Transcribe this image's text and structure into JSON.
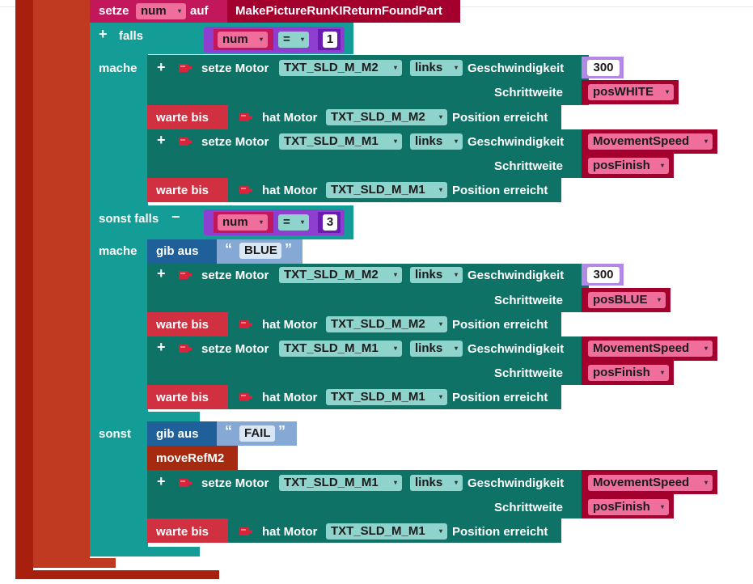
{
  "header": {
    "setze_label": "setze",
    "var_name": "num",
    "auf_label": "auf",
    "procedure": "MakePictureRunKIReturnFoundPart"
  },
  "if_block": {
    "plus_label": "+",
    "minus_label": "−",
    "falls_label": "falls",
    "mache_label": "mache",
    "sonst_falls_label": "sonst falls",
    "sonst_label": "sonst",
    "cond1": {
      "var": "num",
      "op": "=",
      "value": "1"
    },
    "cond2": {
      "var": "num",
      "op": "=",
      "value": "3"
    }
  },
  "labels": {
    "setze_motor": "setze Motor",
    "geschwindigkeit": "Geschwindigkeit",
    "schrittweite": "Schrittweite",
    "warte_bis": "warte bis",
    "hat_motor": "hat Motor",
    "position_erreicht": "Position erreicht",
    "gib_aus": "gib aus",
    "open_quote": "“",
    "close_quote": "”",
    "move_ref": "moveRefM2"
  },
  "motors": {
    "m1": "TXT_SLD_M_M1",
    "m2": "TXT_SLD_M_M2"
  },
  "direction": "links",
  "values": {
    "speed_300": "300",
    "movement_speed": "MovementSpeed",
    "pos_white": "posWHITE",
    "pos_finish": "posFinish",
    "pos_blue": "posBLUE"
  },
  "strings": {
    "blue": "BLUE",
    "fail": "FAIL"
  },
  "icons": {
    "motor": "motor-icon",
    "plus": "plus-icon",
    "minus": "minus-icon",
    "dropdown": "chevron-down-icon"
  },
  "colors": {
    "outer_dark": "#a81f0e",
    "teal": "#149c96",
    "dark_teal": "#0e7366",
    "red": "#d03040",
    "crimson": "#a3002e",
    "magenta": "#c2185b",
    "blue": "#1f5f9a",
    "purple": "#8e3fd0"
  }
}
